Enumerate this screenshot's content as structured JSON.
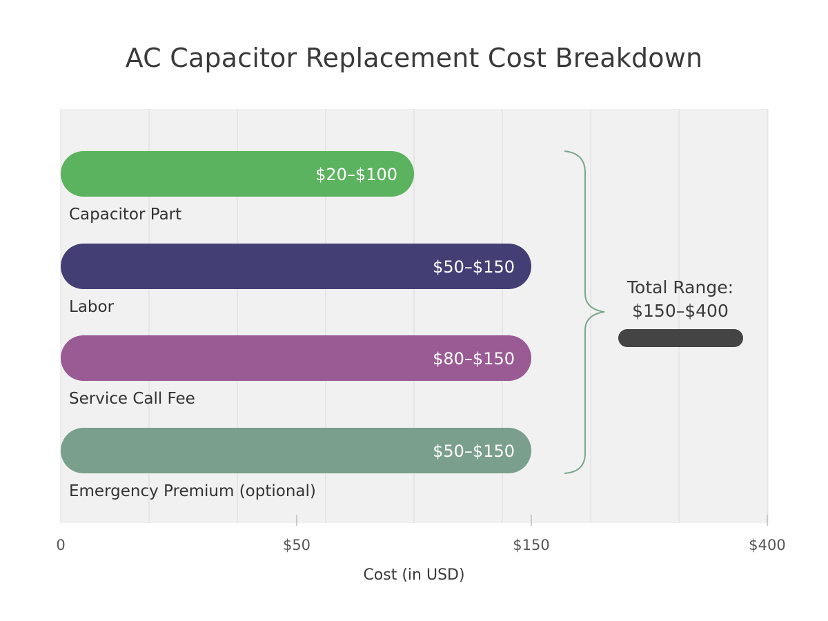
{
  "chart_data": {
    "type": "bar",
    "orientation": "horizontal",
    "title": "AC Capacitor Replacement Cost Breakdown",
    "xlabel": "Cost (in USD)",
    "ylabel": "",
    "categories": [
      "Capacitor Part",
      "Labor",
      "Service Call Fee",
      "Emergency Premium (optional)"
    ],
    "series": [
      {
        "ranges": [
          [
            20,
            100
          ],
          [
            50,
            150
          ],
          [
            80,
            150
          ],
          [
            50,
            150
          ]
        ],
        "data_labels": [
          "$20–$100",
          "$50–$150",
          "$80–$150",
          "$50–$150"
        ]
      }
    ],
    "colors": [
      "#5cb35f",
      "#433f74",
      "#9a5b95",
      "#7a9f8d"
    ],
    "x_ticks": [
      {
        "value": 0,
        "label": "0"
      },
      {
        "value": 50,
        "label": "$50"
      },
      {
        "value": 150,
        "label": "$150"
      },
      {
        "value": 400,
        "label": "$400"
      }
    ],
    "grid": true,
    "annotation": {
      "line1": "Total Range:",
      "line2": "$150–$400",
      "range": [
        150,
        400
      ],
      "bracket_color": "#7aa78b",
      "marker_color": "#444444"
    }
  }
}
